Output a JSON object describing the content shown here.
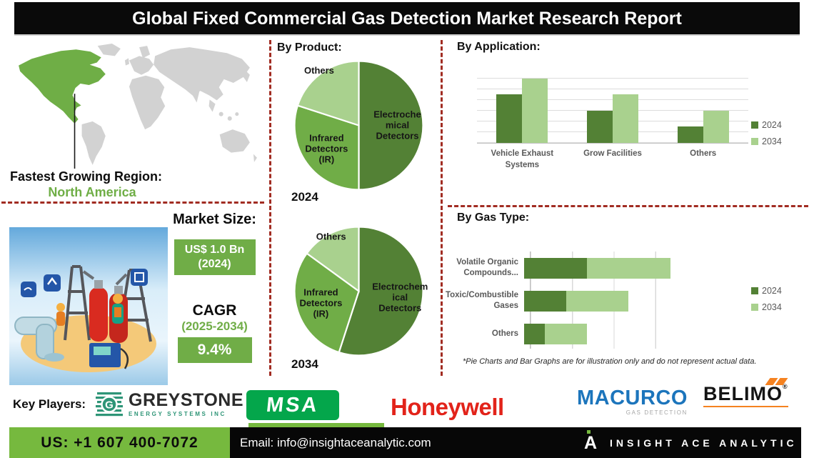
{
  "title": "Global Fixed Commercial Gas Detection Market Research Report",
  "region": {
    "label": "Fastest Growing Region:",
    "value": "North America"
  },
  "market": {
    "size_label": "Market Size:",
    "size_value": "US$ 1.0 Bn",
    "size_year": "(2024)",
    "cagr_label": "CAGR",
    "cagr_period": "(2025-2034)",
    "cagr_value": "9.4%"
  },
  "sections": {
    "product": "By Product:",
    "application": "By Application:",
    "gas": "By Gas Type:"
  },
  "disclaimer": "*Pie Charts and Bar Graphs are for illustration only and do not represent actual data.",
  "key_players": {
    "label": "Key Players:",
    "greystone": {
      "name": "GREYSTONE",
      "sub": "ENERGY SYSTEMS INC",
      "icon_letter": "G"
    },
    "msa": {
      "name": "MSA"
    },
    "honeywell": {
      "name": "Honeywell"
    },
    "macurco": {
      "name": "MACURCO",
      "sub": "GAS DETECTION"
    },
    "belimo": {
      "name": "BELIMO",
      "reg": "®"
    }
  },
  "footer": {
    "phone": "US: +1 607 400-7072",
    "email": "Email: info@insightaceanalytic.com",
    "brand_mark": "A",
    "brand": "INSIGHT ACE ANALYTIC"
  },
  "colors": {
    "green_dark": "#538135",
    "green_mid": "#70AD47",
    "green_light": "#A9D18E",
    "divider_red": "#A12C22",
    "footer_green": "#76B93E",
    "map_highlight": "#6FAE46",
    "map_gray": "#D2D2D2",
    "msa_green": "#04A64B",
    "honeywell_red": "#E2231A",
    "macurco_blue": "#1C75BC",
    "greystone_teal": "#2E9577",
    "belimo_orange": "#F58220"
  },
  "chart_data": [
    {
      "type": "pie",
      "year_label": "2024",
      "title": "By Product:",
      "slices": [
        {
          "label": "Electrochemical Detectors",
          "lines": [
            "Electroche",
            "mical",
            "Detectors"
          ],
          "value": 50,
          "color": "#538135",
          "label_r": 0.6
        },
        {
          "label": "Infrared Detectors (IR)",
          "lines": [
            "Infrared",
            "Detectors",
            "(IR)"
          ],
          "value": 30,
          "color": "#70AD47",
          "label_r": 0.62
        },
        {
          "label": "Others",
          "lines": [
            "Others"
          ],
          "value": 20,
          "color": "#A9D18E",
          "label_r": 1.05
        }
      ]
    },
    {
      "type": "pie",
      "year_label": "2034",
      "title": "By Product:",
      "slices": [
        {
          "label": "Electrochemical Detectors",
          "lines": [
            "Electrochem",
            "ical",
            "Detectors"
          ],
          "value": 55,
          "color": "#538135",
          "label_r": 0.65
        },
        {
          "label": "Infrared Detectors (IR)",
          "lines": [
            "Infrared",
            "Detectors",
            "(IR)"
          ],
          "value": 30,
          "color": "#70AD47",
          "label_r": 0.62
        },
        {
          "label": "Others",
          "lines": [
            "Others"
          ],
          "value": 15,
          "color": "#A9D18E",
          "label_r": 0.95
        }
      ]
    },
    {
      "type": "bar",
      "title": "By Application:",
      "categories": [
        "Vehicle Exhaust Systems",
        "Grow Facilities",
        "Others"
      ],
      "series": [
        {
          "name": "2024",
          "color": "#538135",
          "values": [
            3,
            2,
            1
          ]
        },
        {
          "name": "2034",
          "color": "#A9D18E",
          "values": [
            4,
            3,
            2
          ]
        }
      ],
      "ylim": [
        0,
        4.6
      ],
      "grid": true,
      "legend_position": "right",
      "note": "relative illustrative heights, no value axis labels shown"
    },
    {
      "type": "bar-horizontal-stacked",
      "title": "By Gas Type:",
      "categories": [
        "Volatile Organic Compounds...",
        "Toxic/Combustible Gases",
        "Others"
      ],
      "series": [
        {
          "name": "2024",
          "color": "#538135",
          "values": [
            1.5,
            1.0,
            0.5
          ]
        },
        {
          "name": "2034",
          "color": "#A9D18E",
          "values": [
            2.0,
            1.5,
            1.0
          ]
        }
      ],
      "xlim": [
        0,
        4
      ],
      "grid": true,
      "legend_position": "right",
      "note": "relative illustrative lengths, no value axis labels shown"
    }
  ]
}
